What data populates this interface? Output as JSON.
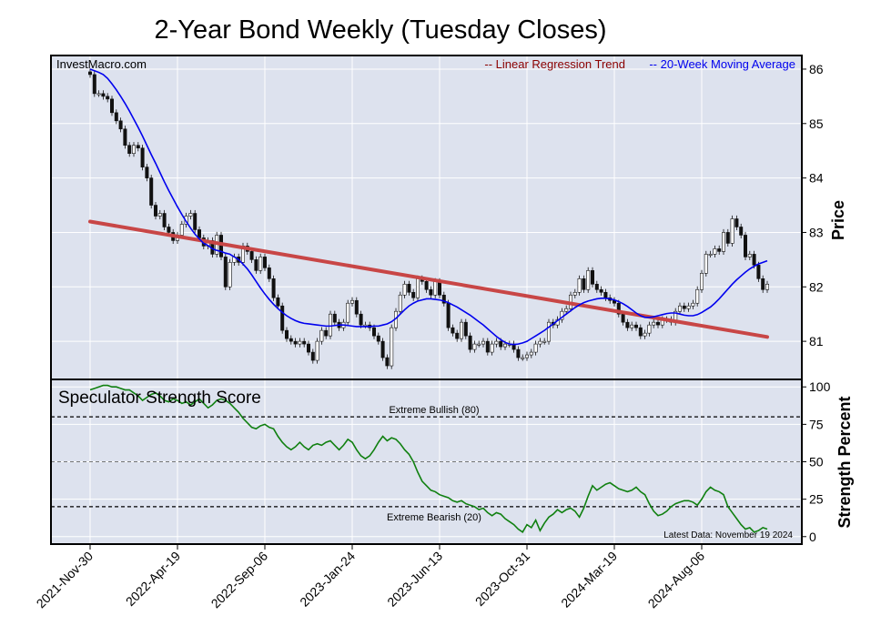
{
  "title": "2-Year Bond Weekly (Tuesday Closes)",
  "watermark": "InvestMacro.com",
  "legend": {
    "regression": "-- Linear Regression Trend",
    "moving_average": "-- 20-Week Moving Average"
  },
  "colors": {
    "background": "#dde2ee",
    "regression": "#c84646",
    "regression_text": "#8b0000",
    "moving_average": "#0000ee",
    "strength": "#108010",
    "candle": "#111111"
  },
  "chart_data": [
    {
      "type": "candlestick",
      "ylabel": "Price",
      "ylim": [
        80.3,
        86.25
      ],
      "yticks": [
        81,
        82,
        83,
        84,
        85,
        86
      ],
      "x_start": "2021-11-30",
      "weeks": 156,
      "closes": [
        85.9,
        85.55,
        85.55,
        85.5,
        85.45,
        85.2,
        85.05,
        84.9,
        84.6,
        84.45,
        84.6,
        84.55,
        84.2,
        84.0,
        83.5,
        83.3,
        83.35,
        83.1,
        83.0,
        82.85,
        82.95,
        83.15,
        83.3,
        83.35,
        83.05,
        82.9,
        82.75,
        82.85,
        82.6,
        82.95,
        82.55,
        82.0,
        82.45,
        82.55,
        82.45,
        82.75,
        82.65,
        82.5,
        82.3,
        82.55,
        82.35,
        82.15,
        81.8,
        81.65,
        81.2,
        81.05,
        81.0,
        80.95,
        81.0,
        80.95,
        80.8,
        80.65,
        81.0,
        81.2,
        81.1,
        81.5,
        81.35,
        81.25,
        81.35,
        81.7,
        81.75,
        81.5,
        81.3,
        81.3,
        81.25,
        81.1,
        81.0,
        80.7,
        80.55,
        81.25,
        81.55,
        81.85,
        82.05,
        81.9,
        81.8,
        82.15,
        82.1,
        81.95,
        81.85,
        82.1,
        81.85,
        81.7,
        81.25,
        81.15,
        81.05,
        81.35,
        81.1,
        80.85,
        80.95,
        80.95,
        81.0,
        80.8,
        80.95,
        81.0,
        80.9,
        80.95,
        80.95,
        80.85,
        80.7,
        80.7,
        80.75,
        80.8,
        80.95,
        81.0,
        81.0,
        81.35,
        81.3,
        81.4,
        81.55,
        81.6,
        81.85,
        81.9,
        82.15,
        81.95,
        82.3,
        82.05,
        81.95,
        81.9,
        81.8,
        81.75,
        81.7,
        81.5,
        81.35,
        81.25,
        81.3,
        81.25,
        81.1,
        81.15,
        81.3,
        81.35,
        81.3,
        81.4,
        81.4,
        81.35,
        81.55,
        81.65,
        81.6,
        81.65,
        81.7,
        81.95,
        82.25,
        82.6,
        82.6,
        82.7,
        82.65,
        83.0,
        82.8,
        83.25,
        83.1,
        82.95,
        82.55,
        82.6,
        82.4,
        82.15,
        81.95,
        82.05
      ],
      "regression_trend": [
        [
          0,
          83.2
        ],
        [
          155,
          81.08
        ]
      ],
      "moving_average_20": [
        86.0,
        85.97,
        85.94,
        85.9,
        85.83,
        85.73,
        85.62,
        85.5,
        85.37,
        85.23,
        85.08,
        84.93,
        84.77,
        84.6,
        84.43,
        84.27,
        84.1,
        83.93,
        83.77,
        83.62,
        83.47,
        83.33,
        83.2,
        83.08,
        82.97,
        82.88,
        82.8,
        82.76,
        82.7,
        82.67,
        82.65,
        82.62,
        82.6,
        82.55,
        82.5,
        82.42,
        82.33,
        82.22,
        82.1,
        81.98,
        81.87,
        81.77,
        81.68,
        81.6,
        81.53,
        81.47,
        81.42,
        81.38,
        81.35,
        81.33,
        81.32,
        81.31,
        81.3,
        81.29,
        81.28,
        81.28,
        81.29,
        81.3,
        81.3,
        81.29,
        81.28,
        81.27,
        81.27,
        81.27,
        81.27,
        81.28,
        81.28,
        81.3,
        81.32,
        81.36,
        81.42,
        81.5,
        81.58,
        81.65,
        81.7,
        81.74,
        81.76,
        81.78,
        81.78,
        81.77,
        81.76,
        81.74,
        81.71,
        81.67,
        81.63,
        81.58,
        81.53,
        81.48,
        81.42,
        81.36,
        81.3,
        81.23,
        81.16,
        81.09,
        81.03,
        80.98,
        80.95,
        80.94,
        80.95,
        80.97,
        81.0,
        81.05,
        81.1,
        81.15,
        81.2,
        81.26,
        81.32,
        81.38,
        81.44,
        81.5,
        81.56,
        81.62,
        81.67,
        81.71,
        81.74,
        81.76,
        81.78,
        81.79,
        81.79,
        81.78,
        81.76,
        81.73,
        81.69,
        81.64,
        81.58,
        81.52,
        81.47,
        81.44,
        81.44,
        81.45,
        81.47,
        81.49,
        81.51,
        81.52,
        81.52,
        81.5,
        81.48,
        81.47,
        81.47,
        81.49,
        81.53,
        81.58,
        81.63,
        81.7,
        81.78,
        81.87,
        81.96,
        82.05,
        82.13,
        82.2,
        82.27,
        82.33,
        82.38,
        82.42,
        82.45,
        82.48
      ]
    },
    {
      "type": "line",
      "title": "Speculator Strength Score",
      "ylabel": "Strength Percent",
      "ylim": [
        -5,
        105
      ],
      "yticks": [
        0,
        25,
        50,
        75,
        100
      ],
      "reference_lines": [
        {
          "value": 80,
          "label": "Extreme Bullish (80)"
        },
        {
          "value": 50,
          "label": ""
        },
        {
          "value": 20,
          "label": "Extreme Bearish (20)"
        }
      ],
      "annotation": "Latest Data: November 19 2024",
      "values": [
        98,
        99,
        100,
        101,
        101,
        100,
        100,
        99,
        98,
        98,
        96,
        94,
        91,
        93,
        95,
        96,
        94,
        91,
        90,
        92,
        91,
        89,
        90,
        88,
        90,
        92,
        89,
        86,
        88,
        91,
        92,
        91,
        89,
        86,
        83,
        79,
        76,
        73,
        72,
        74,
        75,
        73,
        72,
        67,
        63,
        60,
        58,
        60,
        63,
        60,
        58,
        61,
        62,
        61,
        63,
        64,
        61,
        58,
        61,
        65,
        63,
        58,
        54,
        52,
        54,
        58,
        63,
        67,
        64,
        66,
        65,
        62,
        58,
        55,
        50,
        43,
        37,
        34,
        31,
        30,
        28,
        27,
        26,
        24,
        23,
        24,
        22,
        21,
        20,
        18,
        19,
        16,
        14,
        16,
        15,
        12,
        10,
        8,
        5,
        3,
        8,
        6,
        11,
        4,
        9,
        13,
        15,
        18,
        16,
        18,
        19,
        17,
        13,
        19,
        27,
        34,
        31,
        33,
        35,
        36,
        34,
        32,
        31,
        30,
        31,
        33,
        30,
        28,
        22,
        17,
        14,
        15,
        17,
        20,
        22,
        23,
        24,
        24,
        23,
        21,
        25,
        30,
        33,
        31,
        30,
        28,
        20,
        16,
        12,
        8,
        5,
        6,
        3,
        4,
        6,
        5
      ]
    }
  ],
  "x_axis": {
    "tick_labels": [
      "2021-Nov-30",
      "2022-Apr-19",
      "2022-Sep-06",
      "2023-Jan-24",
      "2023-Jun-13",
      "2023-Oct-31",
      "2024-Mar-19",
      "2024-Aug-06"
    ],
    "tick_weeks": [
      0,
      20,
      40,
      60,
      80,
      100,
      120,
      140
    ]
  }
}
